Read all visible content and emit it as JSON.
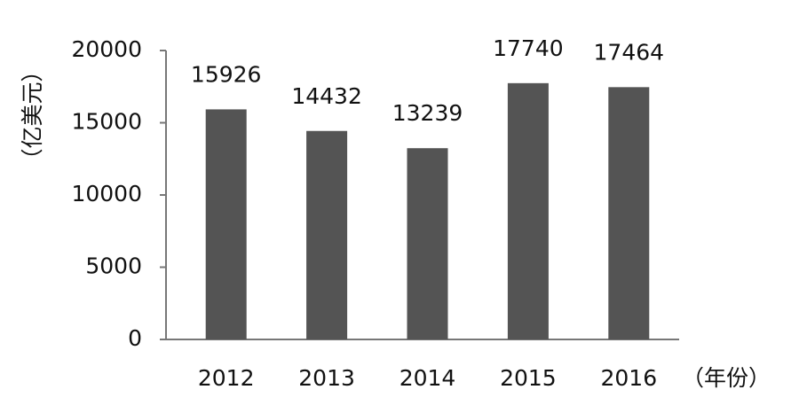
{
  "chart_data": {
    "type": "bar",
    "y_label": "（亿美元）",
    "x_label": "（年份）",
    "categories": [
      "2012",
      "2013",
      "2014",
      "2015",
      "2016"
    ],
    "values": [
      15926,
      14432,
      13239,
      17740,
      17464
    ],
    "color": "#545454",
    "ylim": [
      0,
      20000
    ],
    "yticks": [
      0,
      5000,
      10000,
      15000,
      20000
    ],
    "grid": false
  }
}
